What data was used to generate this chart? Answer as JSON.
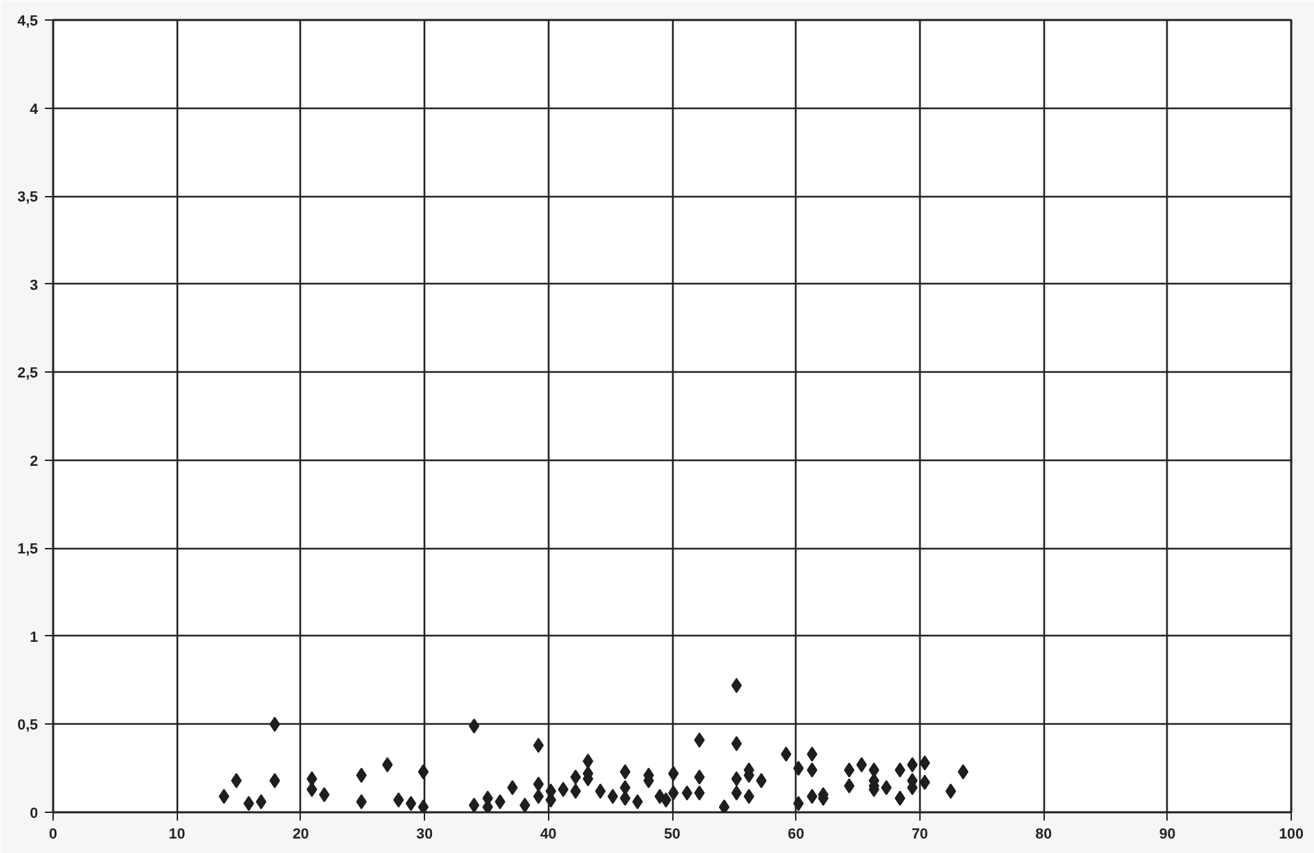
{
  "chart_data": {
    "type": "scatter",
    "marker": "diamond",
    "grid": true,
    "xlim": [
      0,
      100
    ],
    "xticks": [
      0,
      10,
      20,
      30,
      40,
      50,
      60,
      70,
      80,
      90,
      100
    ],
    "ylim": [
      0,
      4.5
    ],
    "yticks": [
      0,
      {
        "value": 0.5,
        "label": "0,5"
      },
      1,
      {
        "value": 1.5,
        "label": "1,5"
      },
      2,
      {
        "value": 2.5,
        "label": "2,5"
      },
      3,
      {
        "value": 3.5,
        "label": "3,5"
      },
      4,
      {
        "value": 4.5,
        "label": "4,5"
      }
    ],
    "series": [
      {
        "color": "#1e1e1e",
        "x": [
          13.8,
          14.8,
          15.8,
          16.8,
          17.9,
          17.9,
          20.9,
          20.9,
          21.9,
          24.9,
          24.9,
          27.0,
          27.9,
          28.9,
          29.9,
          29.9,
          34.0,
          34.0,
          35.1,
          35.1,
          36.1,
          37.1,
          38.1,
          39.2,
          39.2,
          39.2,
          40.2,
          40.2,
          41.2,
          42.2,
          42.2,
          43.2,
          43.2,
          43.2,
          44.2,
          45.2,
          46.2,
          46.2,
          46.2,
          47.2,
          48.1,
          48.1,
          49.0,
          49.5,
          50.1,
          50.1,
          51.2,
          52.2,
          52.2,
          52.2,
          54.2,
          55.2,
          55.2,
          55.2,
          55.2,
          56.2,
          56.2,
          56.2,
          57.2,
          59.2,
          60.2,
          60.2,
          61.3,
          61.3,
          61.3,
          62.2,
          62.2,
          64.3,
          64.3,
          65.3,
          66.3,
          66.3,
          66.3,
          66.3,
          67.3,
          68.4,
          68.4,
          69.4,
          69.4,
          69.4,
          70.4,
          70.4,
          72.5,
          73.5
        ],
        "values": [
          0.09,
          0.18,
          0.05,
          0.06,
          0.5,
          0.18,
          0.19,
          0.13,
          0.1,
          0.21,
          0.06,
          0.27,
          0.07,
          0.05,
          0.23,
          0.03,
          0.49,
          0.04,
          0.08,
          0.03,
          0.06,
          0.14,
          0.04,
          0.38,
          0.16,
          0.09,
          0.12,
          0.07,
          0.13,
          0.2,
          0.12,
          0.29,
          0.22,
          0.19,
          0.12,
          0.09,
          0.23,
          0.14,
          0.08,
          0.06,
          0.21,
          0.18,
          0.09,
          0.07,
          0.22,
          0.11,
          0.11,
          0.41,
          0.2,
          0.11,
          0.03,
          0.72,
          0.39,
          0.19,
          0.11,
          0.24,
          0.21,
          0.09,
          0.18,
          0.33,
          0.25,
          0.05,
          0.33,
          0.24,
          0.09,
          0.1,
          0.08,
          0.24,
          0.15,
          0.27,
          0.24,
          0.18,
          0.15,
          0.13,
          0.14,
          0.24,
          0.08,
          0.27,
          0.18,
          0.14,
          0.28,
          0.17,
          0.12,
          0.23
        ]
      }
    ]
  }
}
